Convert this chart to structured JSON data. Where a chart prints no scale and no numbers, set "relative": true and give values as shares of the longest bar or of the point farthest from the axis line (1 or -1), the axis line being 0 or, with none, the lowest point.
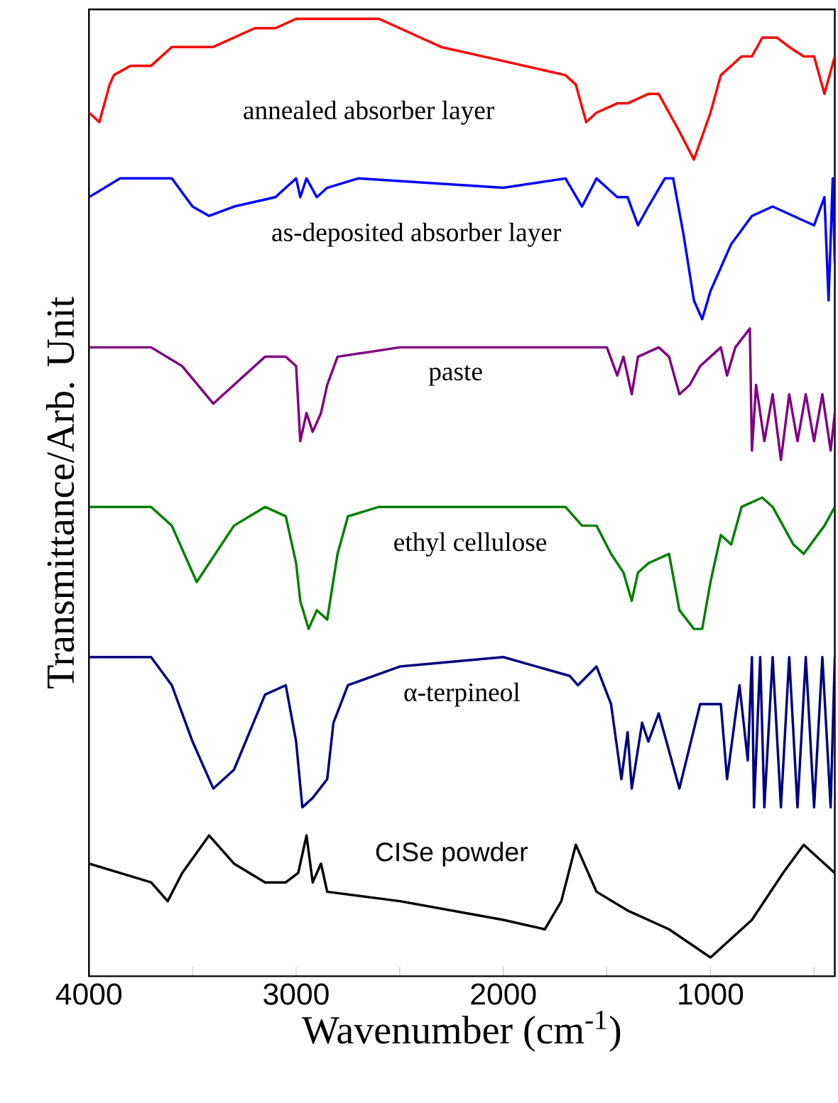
{
  "chart_data": {
    "type": "line",
    "relative": true,
    "xlabel": "Wavenumber (cm$^{-1}$)",
    "ylabel": "Transmittance/Arb. Unit",
    "xlim": [
      4000,
      400
    ],
    "xticks": [
      4000,
      {
        "value": 3500,
        "label": null
      },
      3000,
      {
        "value": 2500,
        "label": null
      },
      2000,
      {
        "value": 1500,
        "label": null
      },
      1000,
      {
        "value": 500,
        "label": null
      }
    ],
    "tick_labels": "x",
    "series": [
      {
        "name": "annealed absorber layer",
        "color": "#ff0000",
        "x": [
          4000,
          3950,
          3900,
          3880,
          3800,
          3700,
          3600,
          3500,
          3400,
          3300,
          3200,
          3100,
          3000,
          2800,
          2600,
          2400,
          2300,
          2100,
          1900,
          1700,
          1650,
          1600,
          1550,
          1450,
          1400,
          1300,
          1250,
          1150,
          1080,
          1000,
          950,
          850,
          800,
          750,
          680,
          620,
          550,
          500,
          450,
          400
        ],
        "values": [
          0.9,
          0.89,
          0.93,
          0.94,
          0.95,
          0.95,
          0.97,
          0.97,
          0.97,
          0.98,
          0.99,
          0.99,
          1.0,
          1.0,
          1.0,
          0.98,
          0.97,
          0.96,
          0.95,
          0.94,
          0.93,
          0.89,
          0.9,
          0.91,
          0.91,
          0.92,
          0.92,
          0.88,
          0.85,
          0.9,
          0.94,
          0.96,
          0.96,
          0.98,
          0.98,
          0.97,
          0.96,
          0.96,
          0.92,
          0.96
        ]
      },
      {
        "name": "as-deposited absorber layer",
        "color": "#0000ff",
        "x": [
          4000,
          3850,
          3700,
          3600,
          3500,
          3420,
          3300,
          3100,
          3000,
          2980,
          2950,
          2900,
          2850,
          2700,
          2000,
          1700,
          1620,
          1550,
          1450,
          1400,
          1350,
          1300,
          1220,
          1180,
          1130,
          1080,
          1040,
          1000,
          900,
          800,
          700,
          600,
          500,
          450,
          430,
          410,
          400
        ],
        "values": [
          0.81,
          0.83,
          0.83,
          0.83,
          0.8,
          0.79,
          0.8,
          0.81,
          0.83,
          0.81,
          0.83,
          0.81,
          0.82,
          0.83,
          0.82,
          0.83,
          0.8,
          0.83,
          0.81,
          0.81,
          0.78,
          0.8,
          0.83,
          0.83,
          0.77,
          0.7,
          0.68,
          0.71,
          0.76,
          0.79,
          0.8,
          0.79,
          0.78,
          0.81,
          0.7,
          0.83,
          0.74
        ]
      },
      {
        "name": "paste",
        "color": "#800080",
        "x": [
          4000,
          3700,
          3550,
          3400,
          3300,
          3150,
          3050,
          3000,
          2980,
          2950,
          2920,
          2880,
          2850,
          2800,
          2500,
          1700,
          1650,
          1550,
          1500,
          1450,
          1420,
          1380,
          1350,
          1250,
          1200,
          1150,
          1100,
          1050,
          1000,
          950,
          920,
          880,
          810,
          800,
          780,
          740,
          700,
          660,
          620,
          580,
          540,
          500,
          460,
          420,
          400
        ],
        "values": [
          0.65,
          0.65,
          0.63,
          0.59,
          0.61,
          0.64,
          0.64,
          0.63,
          0.55,
          0.58,
          0.56,
          0.58,
          0.61,
          0.64,
          0.65,
          0.65,
          0.65,
          0.65,
          0.65,
          0.62,
          0.64,
          0.6,
          0.64,
          0.65,
          0.64,
          0.6,
          0.61,
          0.63,
          0.64,
          0.65,
          0.62,
          0.65,
          0.67,
          0.54,
          0.61,
          0.55,
          0.6,
          0.53,
          0.6,
          0.55,
          0.6,
          0.55,
          0.6,
          0.54,
          0.58
        ]
      },
      {
        "name": "ethyl cellulose",
        "color": "#008000",
        "x": [
          4000,
          3700,
          3600,
          3480,
          3300,
          3150,
          3050,
          3000,
          2980,
          2940,
          2900,
          2850,
          2800,
          2750,
          2600,
          2000,
          1700,
          1620,
          1550,
          1480,
          1420,
          1380,
          1350,
          1300,
          1200,
          1150,
          1080,
          1040,
          1000,
          950,
          900,
          850,
          750,
          700,
          600,
          550,
          450,
          400
        ],
        "values": [
          0.48,
          0.48,
          0.46,
          0.4,
          0.46,
          0.48,
          0.47,
          0.42,
          0.38,
          0.35,
          0.37,
          0.36,
          0.43,
          0.47,
          0.48,
          0.48,
          0.48,
          0.46,
          0.46,
          0.43,
          0.41,
          0.38,
          0.41,
          0.42,
          0.43,
          0.37,
          0.35,
          0.35,
          0.4,
          0.45,
          0.44,
          0.48,
          0.49,
          0.48,
          0.44,
          0.43,
          0.46,
          0.48
        ]
      },
      {
        "name": "α-terpineol",
        "color": "#000080",
        "x": [
          4000,
          3700,
          3600,
          3500,
          3400,
          3300,
          3150,
          3050,
          3000,
          2970,
          2920,
          2850,
          2820,
          2750,
          2500,
          2000,
          1680,
          1640,
          1550,
          1480,
          1430,
          1400,
          1380,
          1330,
          1300,
          1250,
          1200,
          1150,
          1050,
          950,
          920,
          860,
          820,
          800,
          790,
          760,
          740,
          700,
          660,
          620,
          580,
          540,
          500,
          460,
          420,
          400
        ],
        "values": [
          0.32,
          0.32,
          0.29,
          0.23,
          0.18,
          0.2,
          0.28,
          0.29,
          0.23,
          0.16,
          0.17,
          0.19,
          0.25,
          0.29,
          0.31,
          0.32,
          0.3,
          0.29,
          0.31,
          0.27,
          0.19,
          0.24,
          0.18,
          0.25,
          0.23,
          0.26,
          0.22,
          0.18,
          0.27,
          0.27,
          0.19,
          0.29,
          0.21,
          0.32,
          0.16,
          0.32,
          0.16,
          0.32,
          0.16,
          0.32,
          0.16,
          0.32,
          0.16,
          0.32,
          0.16,
          0.32
        ]
      },
      {
        "name": "CISe powder",
        "color": "#000000",
        "x": [
          4000,
          3850,
          3700,
          3620,
          3550,
          3420,
          3300,
          3150,
          3050,
          2990,
          2950,
          2920,
          2880,
          2850,
          2500,
          2000,
          1800,
          1720,
          1650,
          1550,
          1400,
          1200,
          1000,
          800,
          650,
          550,
          450,
          400
        ],
        "values": [
          0.1,
          0.09,
          0.08,
          0.06,
          0.09,
          0.13,
          0.1,
          0.08,
          0.08,
          0.09,
          0.13,
          0.08,
          0.1,
          0.07,
          0.06,
          0.04,
          0.03,
          0.06,
          0.12,
          0.07,
          0.05,
          0.03,
          0,
          0.04,
          0.09,
          0.12,
          0.1,
          0.09
        ]
      }
    ]
  }
}
